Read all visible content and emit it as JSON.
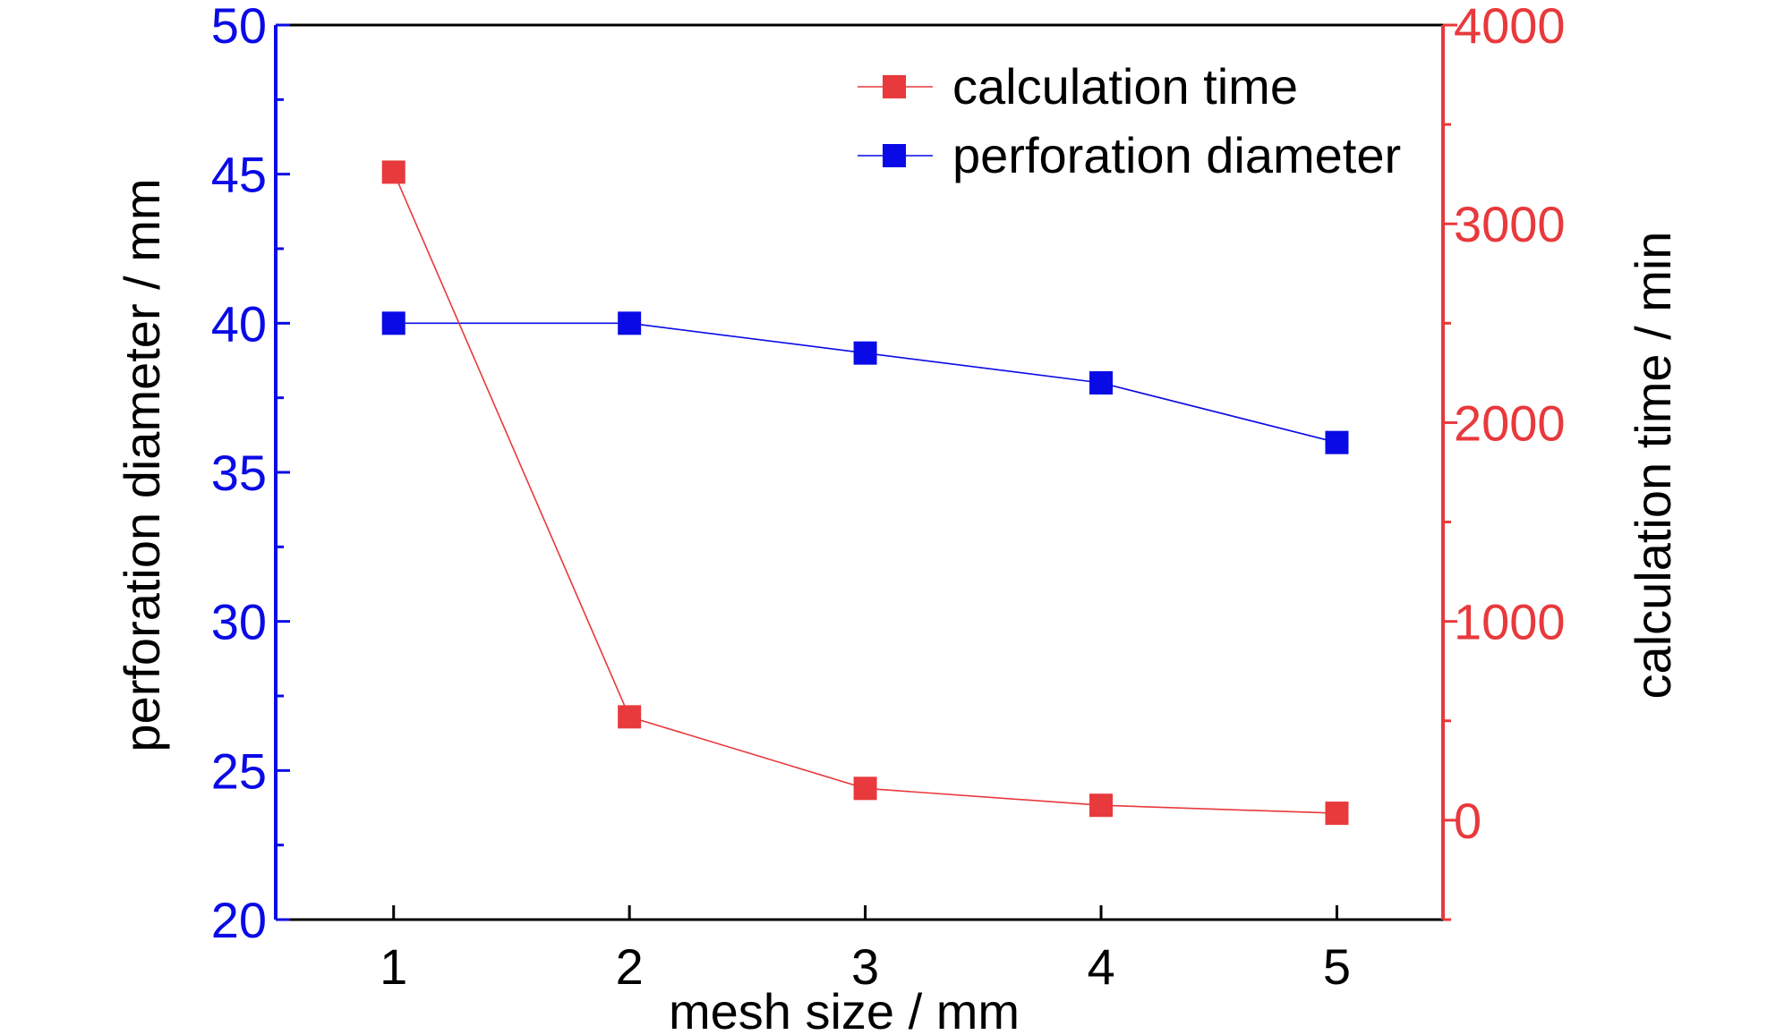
{
  "chart_data": {
    "type": "line",
    "title": "",
    "xlabel": "mesh size / mm",
    "ylabel_left": "perforation diameter / mm",
    "ylabel_right": "calculation time / min",
    "x": [
      1,
      2,
      3,
      4,
      5
    ],
    "xlim": [
      0.5,
      5.45
    ],
    "xticks": [
      "1",
      "2",
      "3",
      "4",
      "5"
    ],
    "ylim_left": [
      20,
      50
    ],
    "yticks_left": [
      "20",
      "25",
      "30",
      "35",
      "40",
      "45",
      "50"
    ],
    "ylim_right": [
      -500,
      4000
    ],
    "yticks_right": [
      "0",
      "1000",
      "2000",
      "3000",
      "4000"
    ],
    "grid": false,
    "legend_position": "top-right",
    "series": [
      {
        "name": "calculation time",
        "axis": "right",
        "color": "#e8393c",
        "marker": "square",
        "values": [
          3260,
          520,
          160,
          75,
          35
        ]
      },
      {
        "name": "perforation diameter",
        "axis": "left",
        "color": "#0a0ae6",
        "marker": "square",
        "values": [
          40,
          40,
          39,
          38,
          36
        ]
      }
    ],
    "colors": {
      "left_axis": "#0a0ae6",
      "right_axis": "#e8393c",
      "frame": "#000000"
    }
  }
}
